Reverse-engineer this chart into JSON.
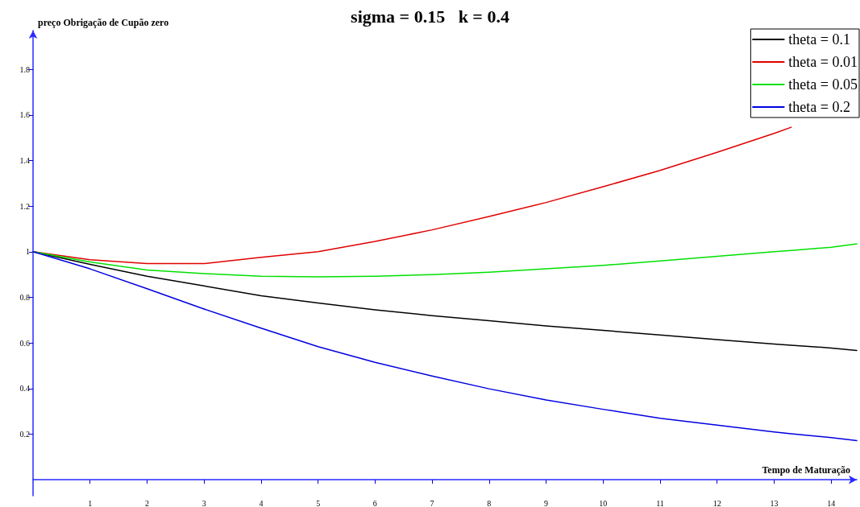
{
  "chart_data": {
    "type": "line",
    "title": "sigma = 0.15   k = 0.4",
    "xlabel": "Tempo de Maturação",
    "ylabel": "preço Obrigação de Cupão zero",
    "x": [
      0,
      1,
      2,
      3,
      4,
      5,
      6,
      7,
      8,
      9,
      10,
      11,
      12,
      13,
      13.3,
      14,
      14.45
    ],
    "series": [
      {
        "name": "theta = 0.1",
        "color": "#000000",
        "values": [
          1,
          0.945,
          0.893,
          0.85,
          0.807,
          0.775,
          0.745,
          0.72,
          0.698,
          0.675,
          0.655,
          0.635,
          0.615,
          0.595,
          0.59,
          0.578,
          0.567
        ]
      },
      {
        "name": "theta = 0.01",
        "color": "#e00000",
        "values": [
          1,
          0.965,
          0.948,
          0.948,
          0.976,
          1.0,
          1.045,
          1.096,
          1.155,
          1.216,
          1.285,
          1.357,
          1.436,
          1.519,
          1.546,
          null,
          null
        ]
      },
      {
        "name": "theta = 0.05",
        "color": "#00e000",
        "values": [
          1,
          0.955,
          0.92,
          0.904,
          0.893,
          0.89,
          0.893,
          0.9,
          0.91,
          0.925,
          0.94,
          0.96,
          0.98,
          1.0,
          1.006,
          1.02,
          1.035
        ]
      },
      {
        "name": "theta = 0.2",
        "color": "#0000e0",
        "values": [
          1,
          0.925,
          0.838,
          0.749,
          0.665,
          0.584,
          0.515,
          0.455,
          0.399,
          0.35,
          0.309,
          0.27,
          0.24,
          0.21,
          0.202,
          0.185,
          0.172
        ]
      }
    ],
    "xlim": [
      0,
      14.45
    ],
    "xticks": [
      1,
      2,
      3,
      4,
      5,
      6,
      7,
      8,
      9,
      10,
      11,
      12,
      13,
      14
    ],
    "ylim": [
      -0.07,
      1.97
    ],
    "yticks": [
      0.2,
      0.4,
      0.6,
      0.8,
      1,
      1.2,
      1.4,
      1.6,
      1.8
    ],
    "grid": false,
    "legend": "top right",
    "marker": "none",
    "line_style": "solid"
  }
}
